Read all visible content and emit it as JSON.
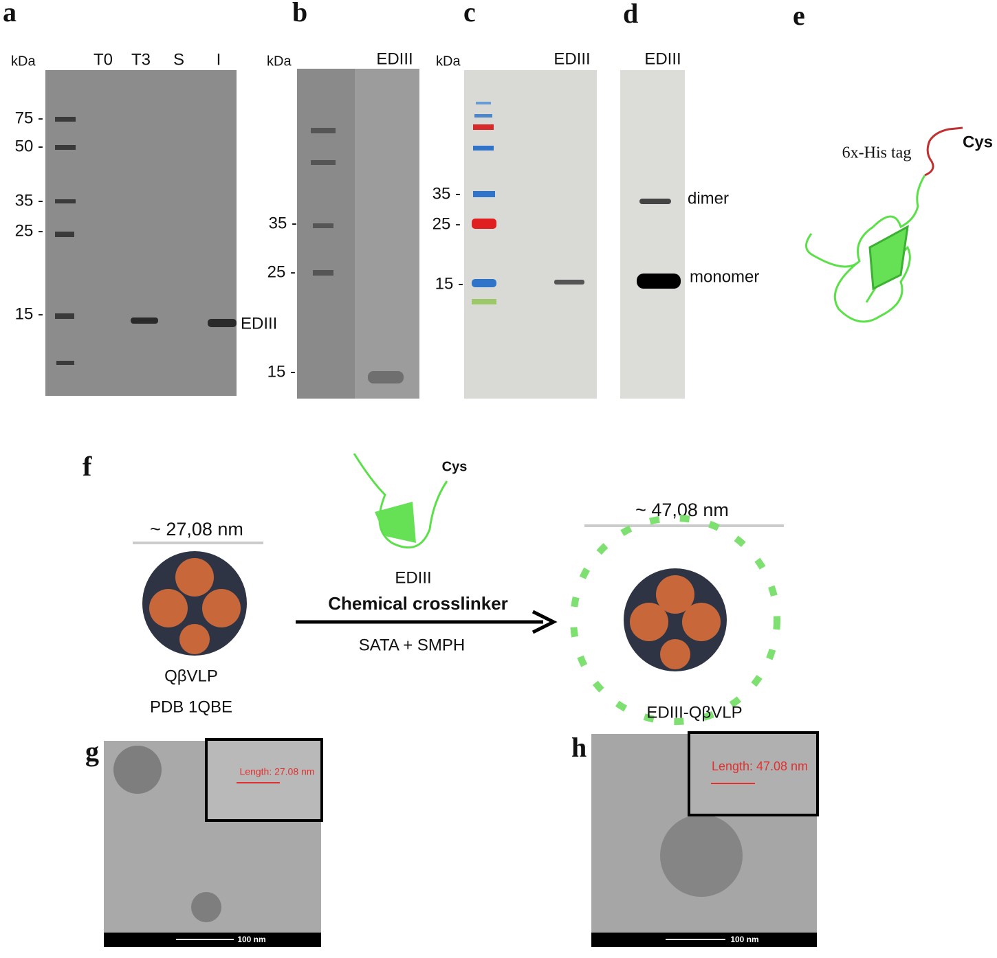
{
  "panel_a": {
    "label": "a",
    "unit": "kDa",
    "lanes": [
      "T0",
      "T3",
      "S",
      "I"
    ],
    "markers": [
      "75 -",
      "50 -",
      "35 -",
      "25 -",
      "15 -"
    ],
    "band_label": "EDIII"
  },
  "panel_b": {
    "label": "b",
    "unit": "kDa",
    "lane": "EDIII",
    "markers": [
      "35 -",
      "25 -",
      "15 -"
    ]
  },
  "panel_c": {
    "label": "c",
    "unit": "kDa",
    "lane": "EDIII",
    "markers": [
      "35 -",
      "25 -",
      "15 -"
    ]
  },
  "panel_d": {
    "label": "d",
    "lane": "EDIII",
    "bands": [
      "dimer",
      "monomer"
    ]
  },
  "panel_e": {
    "label": "e",
    "tag": "6x-His tag",
    "terminus": "Cys"
  },
  "panel_f": {
    "label": "f",
    "left_size": "~ 27,08 nm",
    "protein_terminus": "Cys",
    "protein": "EDIII",
    "reaction": "Chemical crosslinker",
    "reagents": "SATA + SMPH",
    "left_name": "QβVLP",
    "left_id": "PDB 1QBE",
    "right_size": "~ 47,08 nm",
    "right_name": "EDIII-QβVLP"
  },
  "panel_g": {
    "label": "g",
    "measurement": "Length: 27.08 nm",
    "scale": "100 nm"
  },
  "panel_h": {
    "label": "h",
    "measurement": "Length: 47.08 nm",
    "scale": "100 nm"
  }
}
